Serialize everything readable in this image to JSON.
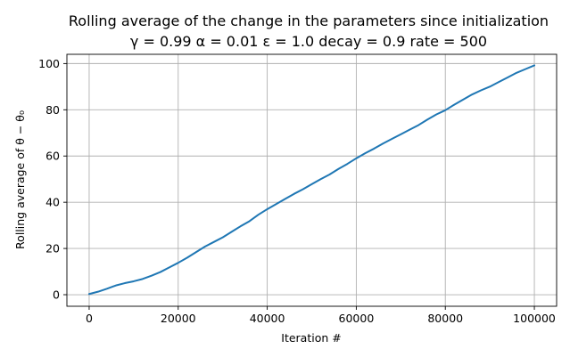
{
  "chart_data": {
    "type": "line",
    "title": "Rolling average of the change in the parameters since initialization",
    "subtitle": "γ = 0.99 α = 0.01 ε = 1.0 decay = 0.9 rate = 500",
    "xlabel": "Iteration #",
    "ylabel": "Rolling average of θ − θ₀",
    "xlim": [
      -5000,
      105000
    ],
    "ylim": [
      -5,
      104
    ],
    "x_ticks": [
      0,
      20000,
      40000,
      60000,
      80000,
      100000
    ],
    "x_tick_labels": [
      "0",
      "20000",
      "40000",
      "60000",
      "80000",
      "100000"
    ],
    "y_ticks": [
      0,
      20,
      40,
      60,
      80,
      100
    ],
    "y_tick_labels": [
      "0",
      "20",
      "40",
      "60",
      "80",
      "100"
    ],
    "grid": true,
    "colors": {
      "series": "#1f77b4",
      "grid": "#b0b0b0"
    },
    "series": [
      {
        "values_x": [
          0,
          2000,
          4000,
          6000,
          8000,
          10000,
          12000,
          14000,
          16000,
          18000,
          20000,
          22000,
          24000,
          26000,
          28000,
          30000,
          32000,
          34000,
          36000,
          38000,
          40000,
          42000,
          44000,
          46000,
          48000,
          50000,
          52000,
          54000,
          56000,
          58000,
          60000,
          62000,
          64000,
          66000,
          68000,
          70000,
          72000,
          74000,
          76000,
          78000,
          80000,
          82000,
          84000,
          86000,
          88000,
          90000,
          92000,
          94000,
          96000,
          98000,
          100000
        ],
        "values_y": [
          0.3,
          1.3,
          2.6,
          4.0,
          5.0,
          5.8,
          6.8,
          8.2,
          9.8,
          11.8,
          13.8,
          16.0,
          18.4,
          20.8,
          22.8,
          24.8,
          27.2,
          29.6,
          31.8,
          34.6,
          37.0,
          39.2,
          41.4,
          43.6,
          45.6,
          47.8,
          50.0,
          52.0,
          54.4,
          56.6,
          59.0,
          61.2,
          63.2,
          65.4,
          67.4,
          69.4,
          71.4,
          73.4,
          75.8,
          78.0,
          79.8,
          82.2,
          84.4,
          86.6,
          88.4,
          90.0,
          92.0,
          94.0,
          96.0,
          97.6,
          99.2
        ]
      }
    ]
  }
}
